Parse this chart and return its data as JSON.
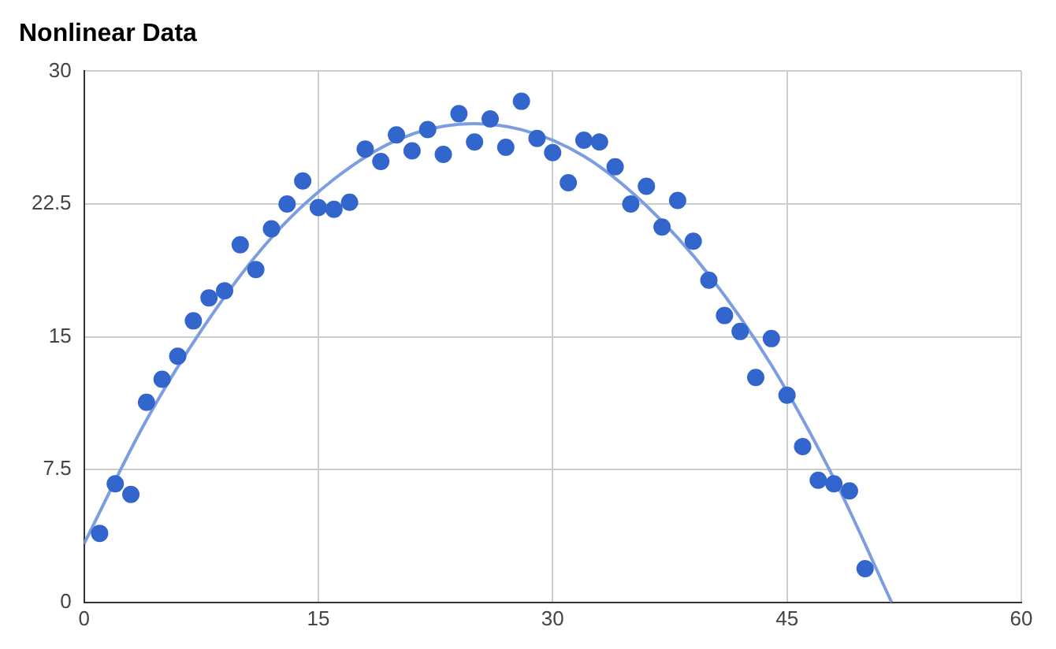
{
  "chart_data": {
    "type": "scatter",
    "title": "Nonlinear Data",
    "xlim": [
      0,
      60
    ],
    "xticks": [
      0,
      15,
      30,
      45,
      60
    ],
    "ylim": [
      0,
      30
    ],
    "yticks": [
      0,
      7.5,
      15,
      22.5,
      30
    ],
    "grid": true,
    "legend": false,
    "series": [
      {
        "type": "scatter",
        "color": "#3366cc",
        "marker": "circle",
        "x": [
          1,
          2,
          3,
          4,
          5,
          6,
          7,
          8,
          9,
          10,
          11,
          12,
          13,
          14,
          15,
          16,
          17,
          18,
          19,
          20,
          21,
          22,
          23,
          24,
          25,
          26,
          27,
          28,
          29,
          30,
          31,
          32,
          33,
          34,
          35,
          36,
          37,
          38,
          39,
          40,
          41,
          42,
          43,
          44,
          45,
          46,
          47,
          48,
          49,
          50
        ],
        "values": [
          3.9,
          6.7,
          6.1,
          11.3,
          12.6,
          13.9,
          15.9,
          17.2,
          17.6,
          20.2,
          18.8,
          21.1,
          22.5,
          23.8,
          22.3,
          22.2,
          22.6,
          25.6,
          24.9,
          26.4,
          25.5,
          26.7,
          25.3,
          27.6,
          26.0,
          27.3,
          25.7,
          28.3,
          26.2,
          25.4,
          23.7,
          26.1,
          26.0,
          24.6,
          22.5,
          23.5,
          21.2,
          22.7,
          20.4,
          18.2,
          16.2,
          15.3,
          12.7,
          14.9,
          11.7,
          8.8,
          6.9,
          6.7,
          6.3,
          1.9
        ]
      },
      {
        "type": "line",
        "color": "#7c9ddf",
        "marker": "none",
        "x": [
          0,
          4,
          8,
          12,
          16,
          20,
          24,
          28,
          32,
          36,
          40,
          44,
          48,
          51.7
        ],
        "values": [
          3.3,
          10.3,
          16.0,
          20.6,
          23.9,
          26.1,
          27.0,
          26.7,
          25.2,
          22.4,
          18.5,
          13.4,
          7.0,
          0
        ]
      }
    ]
  }
}
